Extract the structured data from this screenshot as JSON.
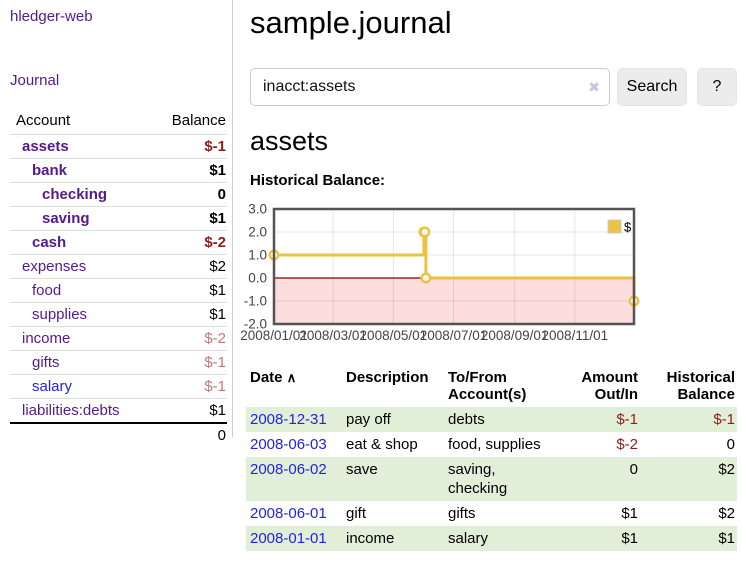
{
  "colors": {
    "link_purple": "#551a8b",
    "link_blue": "#2323dd",
    "negative_strong": "#971a1a",
    "negative_soft": "#c27777",
    "row_green": "#e2efd8",
    "series_gold": "#edc240",
    "chart_negative_region": "#fcdede",
    "chart_zero_line": "#800000",
    "chart_border": "#545454",
    "button_gray": "#ececec"
  },
  "app": {
    "title": "hledger-web"
  },
  "sidebar": {
    "journal_link": "Journal",
    "accounts_table": {
      "account_header": "Account",
      "balance_header": "Balance",
      "rows": [
        {
          "account": "assets",
          "balance": "$-1",
          "depth": 1,
          "bold": true,
          "neg": "strong"
        },
        {
          "account": "bank",
          "balance": "$1",
          "depth": 2,
          "bold": true
        },
        {
          "account": "checking",
          "balance": "0",
          "depth": 3,
          "bold": true
        },
        {
          "account": "saving",
          "balance": "$1",
          "depth": 3,
          "bold": true
        },
        {
          "account": "cash",
          "balance": "$-2",
          "depth": 2,
          "bold": true,
          "neg": "strong"
        },
        {
          "account": "expenses",
          "balance": "$2",
          "depth": 1
        },
        {
          "account": "food",
          "balance": "$1",
          "depth": 2
        },
        {
          "account": "supplies",
          "balance": "$1",
          "depth": 2
        },
        {
          "account": "income",
          "balance": "$-2",
          "depth": 1,
          "neg": "soft"
        },
        {
          "account": "gifts",
          "balance": "$-1",
          "depth": 2,
          "neg": "soft"
        },
        {
          "account": "salary",
          "balance": "$-1",
          "depth": 2,
          "neg": "soft",
          "link_color": "blue"
        },
        {
          "account": "liabilities:debts",
          "balance": "$1",
          "depth": 1
        }
      ],
      "total": "0"
    }
  },
  "main": {
    "title": "sample.journal",
    "search": {
      "value": "inacct:assets",
      "clear_icon": "✖",
      "search_button": "Search",
      "help_button": "?"
    },
    "account_heading": "assets",
    "chart_heading": "Historical Balance:"
  },
  "chart_data": {
    "type": "line",
    "style": "steps",
    "title": "Historical Balance:",
    "legend": "$",
    "legend_position": "top-right",
    "grid": true,
    "xlim": [
      "2008-01-01",
      "2008-12-31"
    ],
    "ylim": [
      -2,
      3
    ],
    "yticks": [
      {
        "v": 3,
        "label": "3.0"
      },
      {
        "v": 2,
        "label": "2.0"
      },
      {
        "v": 1,
        "label": "1.0"
      },
      {
        "v": 0,
        "label": "0.0"
      },
      {
        "v": -1,
        "label": "-1.0"
      },
      {
        "v": -2,
        "label": "-2.0"
      }
    ],
    "xticks": [
      {
        "d": "2008-01-01",
        "label": "2008/01/01"
      },
      {
        "d": "2008-03-01",
        "label": "2008/03/01"
      },
      {
        "d": "2008-05-01",
        "label": "2008/05/01"
      },
      {
        "d": "2008-07-01",
        "label": "2008/07/01"
      },
      {
        "d": "2008-09-01",
        "label": "2008/09/01"
      },
      {
        "d": "2008-11-01",
        "label": "2008/11/01"
      }
    ],
    "series": [
      {
        "name": "$",
        "color": "#edc240",
        "points": [
          {
            "x": "2008-01-01",
            "y": 1
          },
          {
            "x": "2008-06-01",
            "y": 2
          },
          {
            "x": "2008-06-02",
            "y": 2
          },
          {
            "x": "2008-06-03",
            "y": 0
          },
          {
            "x": "2008-12-31",
            "y": -1
          }
        ]
      }
    ],
    "negative_region_color": "#fcdede",
    "zero_line_color": "#800000"
  },
  "register_table": {
    "sort_icon": "∧",
    "headers": [
      "Date",
      "Description",
      "To/From Account(s)",
      "Amount Out/In",
      "Historical Balance"
    ],
    "rows": [
      {
        "date": "2008-12-31",
        "description": "pay off",
        "accounts": "debts",
        "amount": "$-1",
        "balance": "$-1"
      },
      {
        "date": "2008-06-03",
        "description": "eat & shop",
        "accounts": "food, supplies",
        "amount": "$-2",
        "balance": "0"
      },
      {
        "date": "2008-06-02",
        "description": "save",
        "accounts": "saving, checking",
        "amount": "0",
        "balance": "$2"
      },
      {
        "date": "2008-06-01",
        "description": "gift",
        "accounts": "gifts",
        "amount": "$1",
        "balance": "$2"
      },
      {
        "date": "2008-01-01",
        "description": "income",
        "accounts": "salary",
        "amount": "$1",
        "balance": "$1"
      }
    ]
  }
}
